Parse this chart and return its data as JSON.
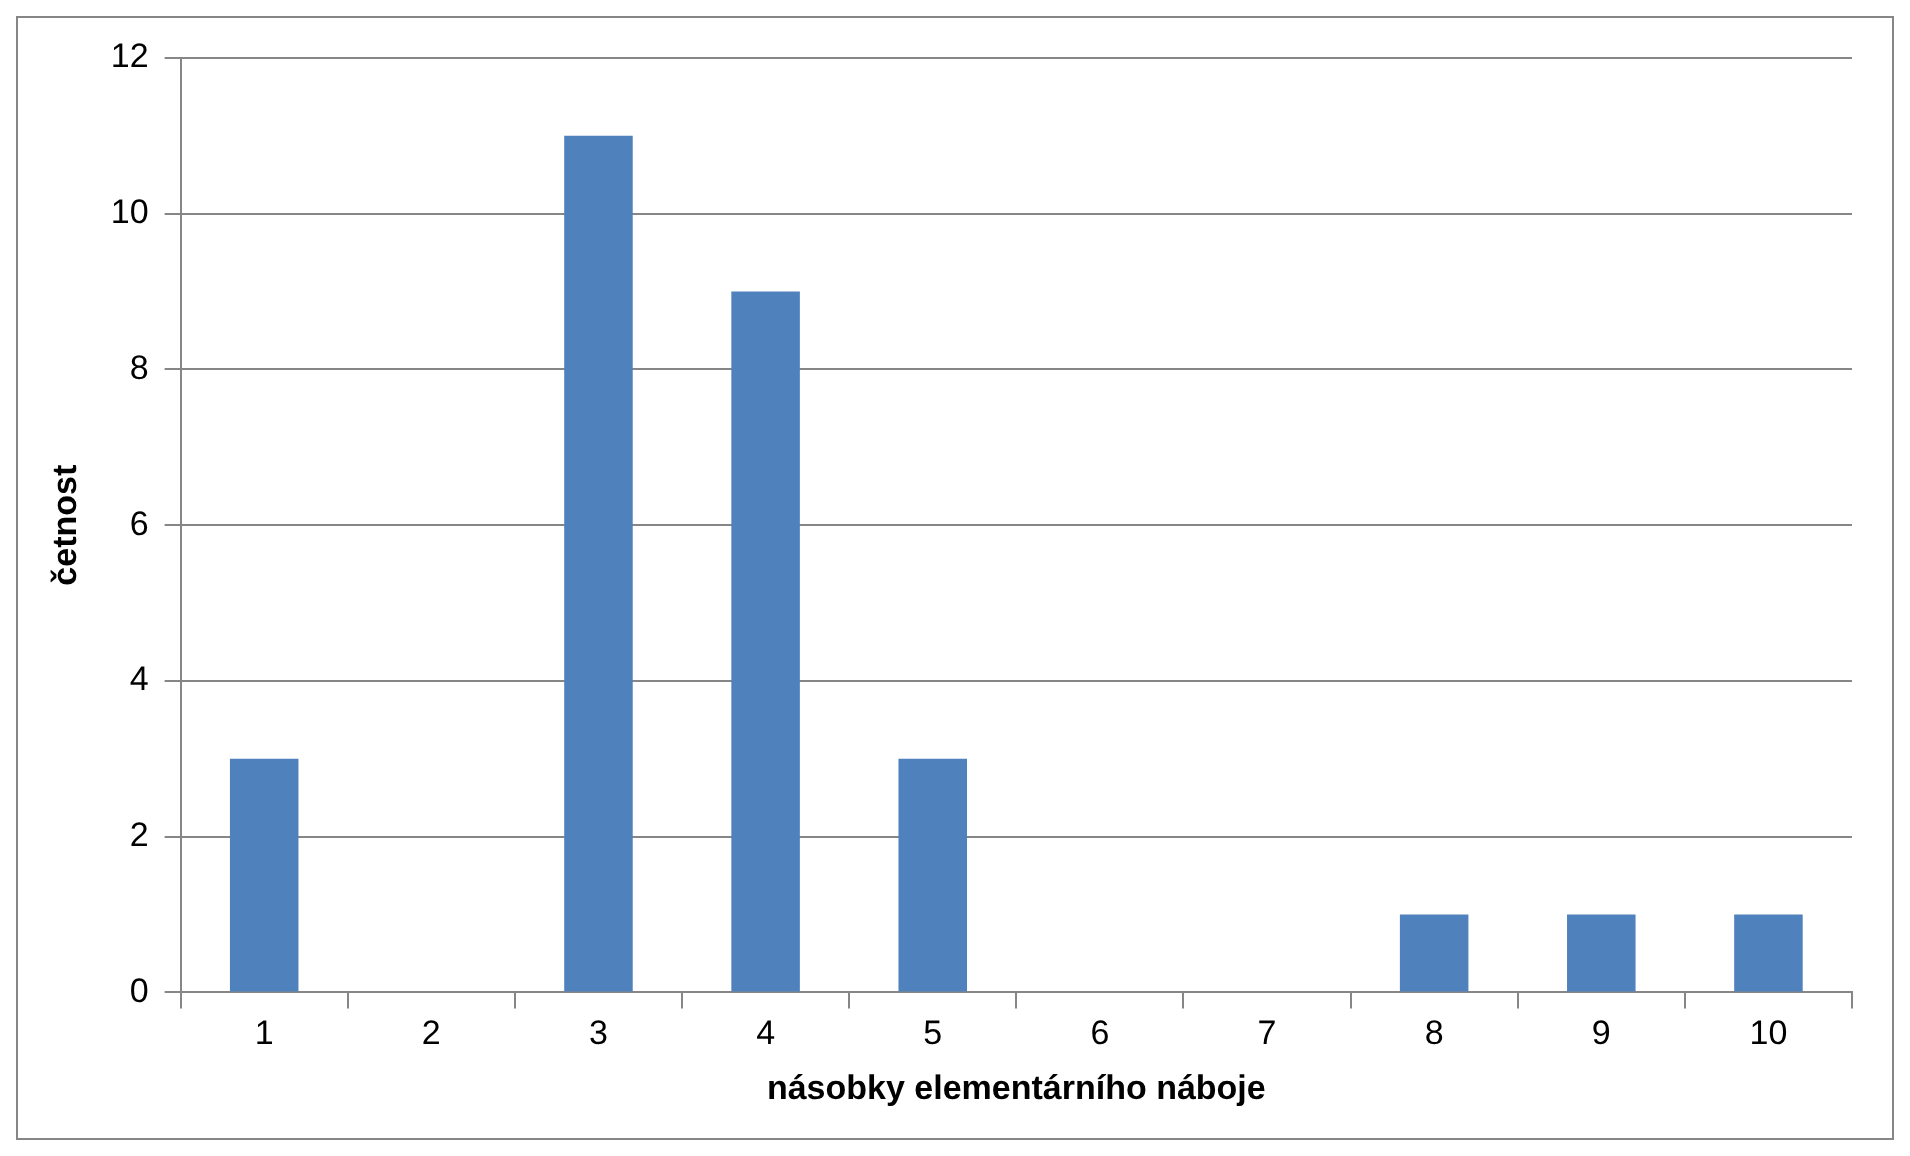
{
  "chart_data": {
    "type": "bar",
    "xlabel": "násobky elementárního náboje",
    "ylabel": "četnost",
    "categories": [
      "1",
      "2",
      "3",
      "4",
      "5",
      "6",
      "7",
      "8",
      "9",
      "10"
    ],
    "values": [
      3,
      0,
      11,
      9,
      3,
      0,
      0,
      1,
      1,
      1
    ],
    "color": "#4f81bd",
    "ylim": [
      0,
      12
    ],
    "yticks": [
      0,
      2,
      4,
      6,
      8,
      10,
      12
    ],
    "grid": "y",
    "legend": false
  }
}
